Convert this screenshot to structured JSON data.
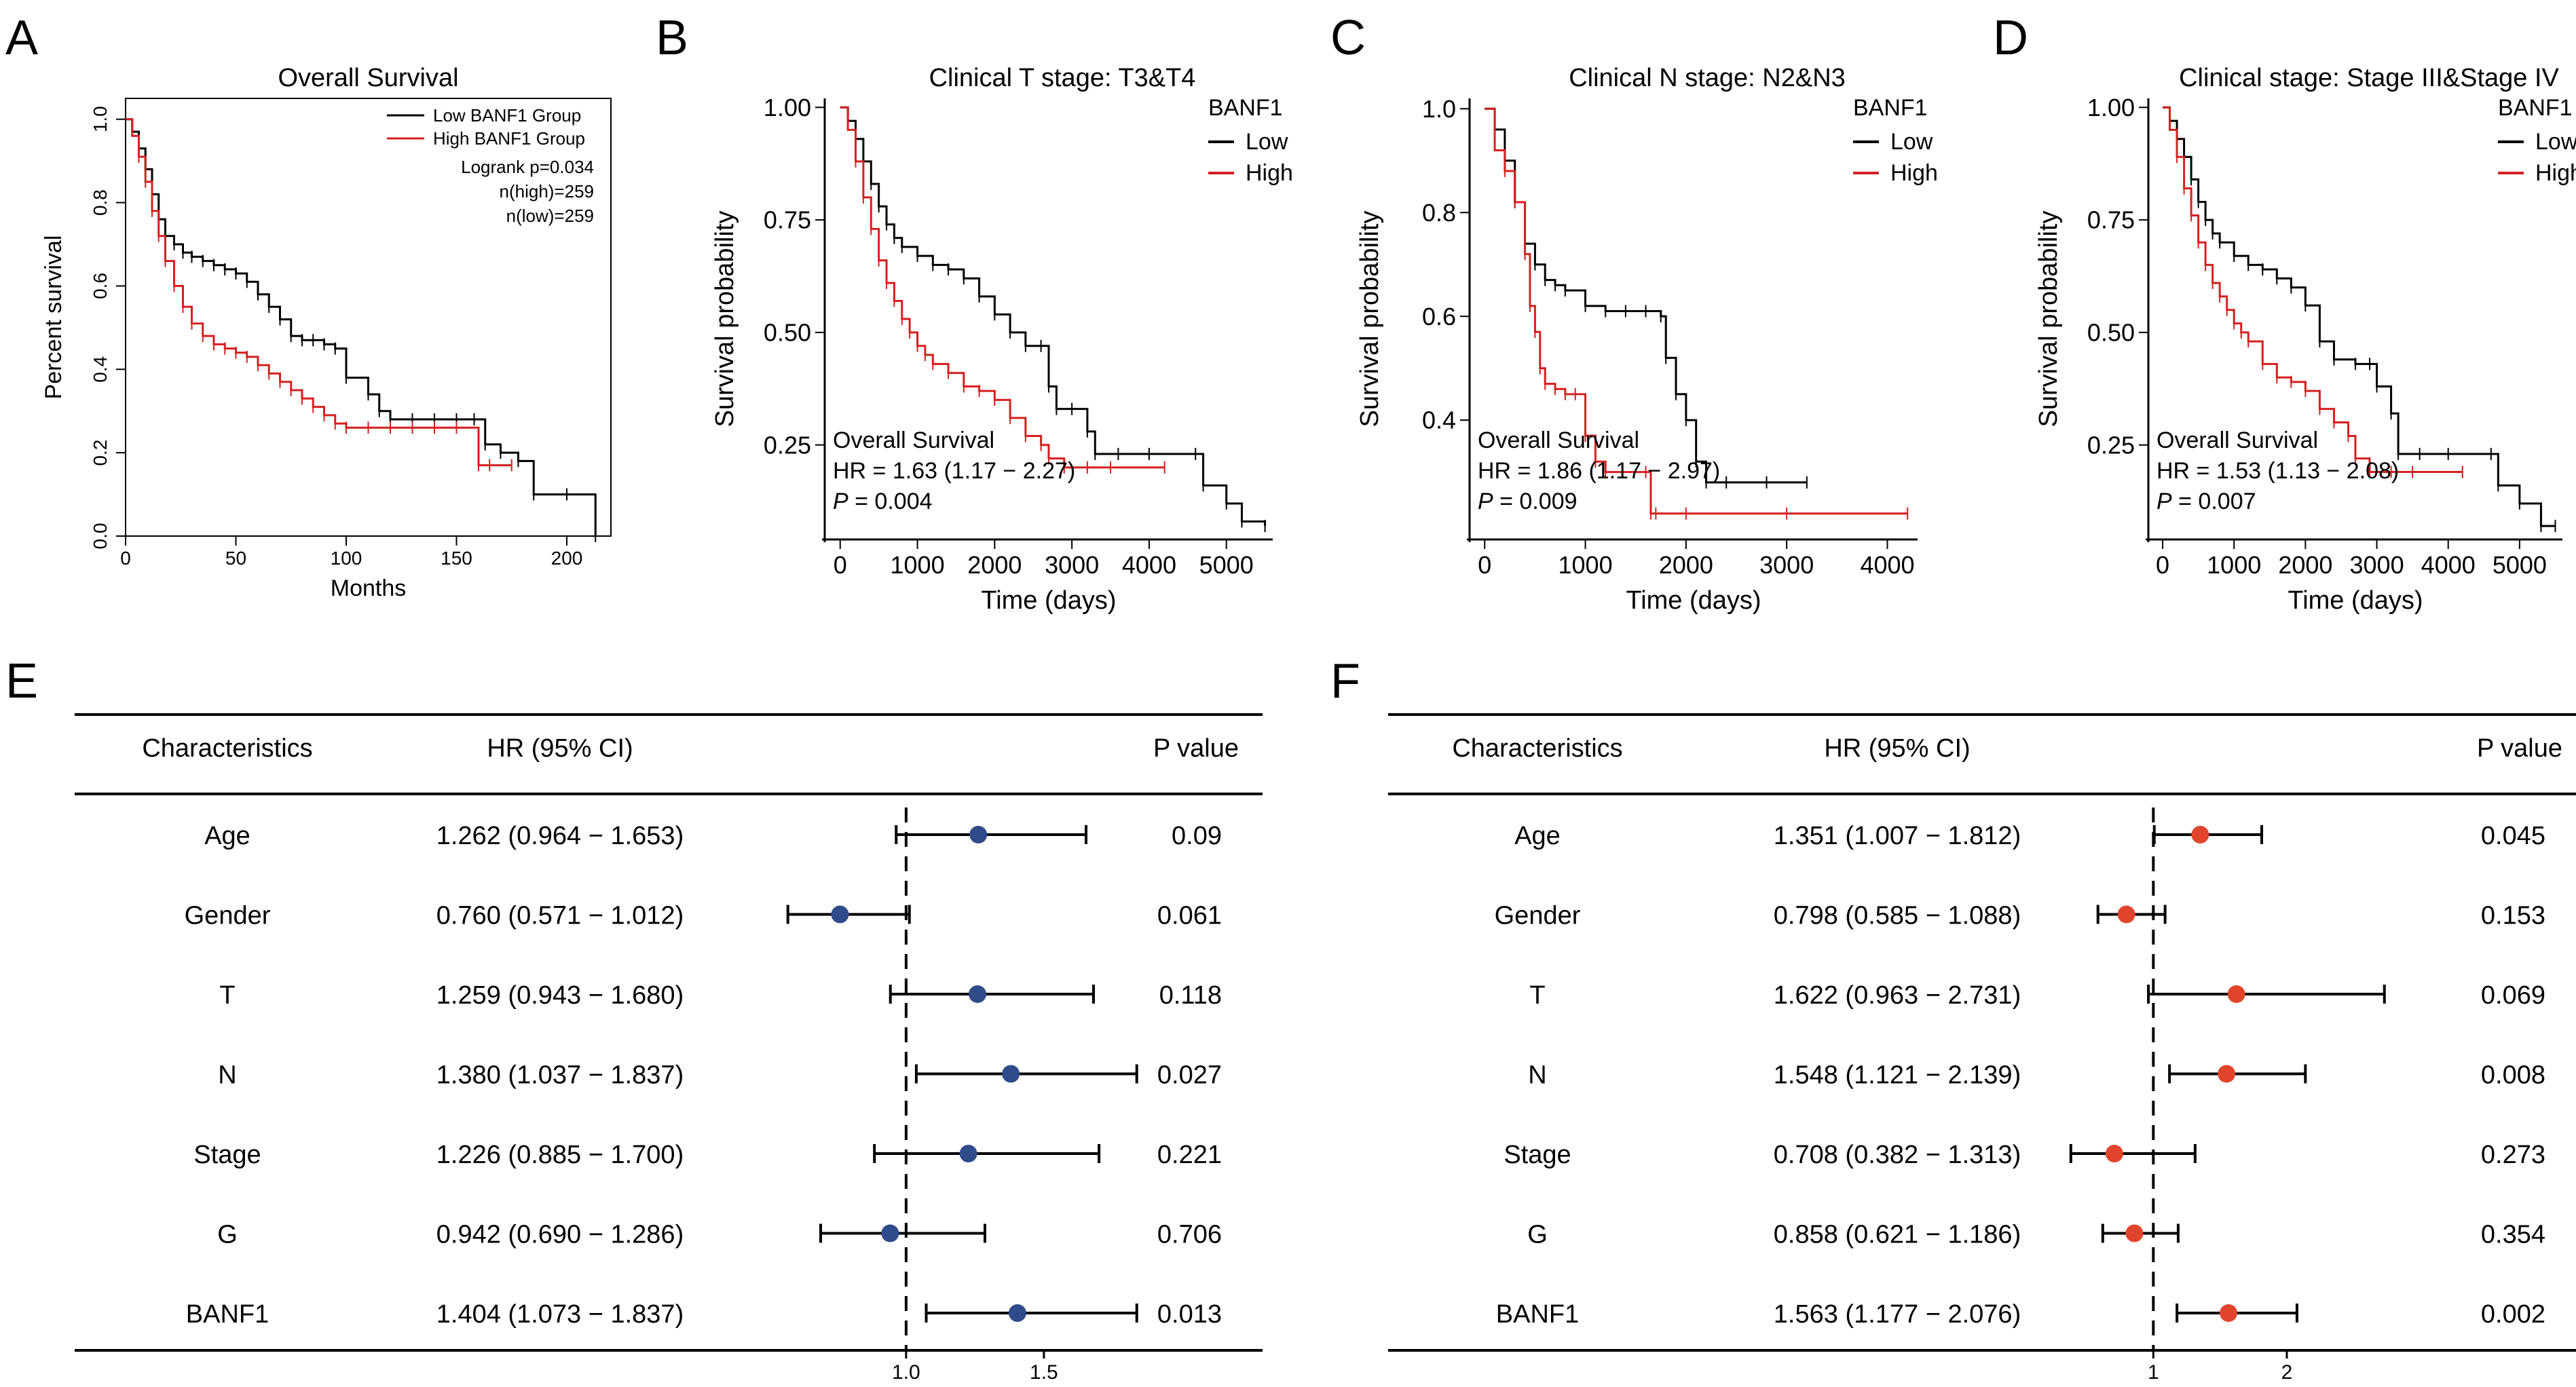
{
  "panel_letters": [
    "A",
    "B",
    "C",
    "D",
    "E",
    "F"
  ],
  "colors": {
    "low": "#000000",
    "high": "#d42020",
    "forest_e": "#2f4b8a",
    "forest_f": "#e0452c"
  },
  "chart_data": [
    {
      "id": "A",
      "type": "line",
      "title": "Overall Survival",
      "xlabel": "Months",
      "ylabel": "Percent survival",
      "xlim": [
        0,
        220
      ],
      "ylim": [
        0,
        1.05
      ],
      "xticks": [
        "0",
        "50",
        "100",
        "150",
        "200"
      ],
      "yticks": [
        "0.0",
        "0.2",
        "0.4",
        "0.6",
        "0.8",
        "1.0"
      ],
      "legend": [
        "Low BANF1 Group",
        "High BANF1 Group"
      ],
      "annotations": [
        "Logrank p=0.034",
        "n(high)=259",
        "n(low)=259"
      ],
      "series": [
        {
          "name": "Low BANF1 Group",
          "x": [
            0,
            3,
            6,
            9,
            12,
            15,
            18,
            22,
            26,
            30,
            35,
            40,
            45,
            50,
            55,
            60,
            65,
            70,
            75,
            80,
            85,
            90,
            95,
            100,
            110,
            115,
            120,
            130,
            140,
            150,
            158,
            163,
            170,
            178,
            185,
            200,
            213
          ],
          "y": [
            1.0,
            0.97,
            0.93,
            0.88,
            0.82,
            0.76,
            0.72,
            0.7,
            0.68,
            0.67,
            0.66,
            0.65,
            0.64,
            0.63,
            0.61,
            0.58,
            0.55,
            0.52,
            0.48,
            0.47,
            0.47,
            0.46,
            0.45,
            0.38,
            0.34,
            0.3,
            0.28,
            0.28,
            0.28,
            0.28,
            0.28,
            0.22,
            0.2,
            0.18,
            0.1,
            0.1,
            0.0
          ]
        },
        {
          "name": "High BANF1 Group",
          "x": [
            0,
            3,
            6,
            9,
            12,
            15,
            18,
            22,
            26,
            30,
            35,
            40,
            45,
            50,
            55,
            60,
            65,
            70,
            75,
            80,
            85,
            90,
            95,
            100,
            110,
            120,
            130,
            140,
            150,
            160,
            165,
            175
          ],
          "y": [
            1.0,
            0.96,
            0.91,
            0.85,
            0.78,
            0.72,
            0.66,
            0.6,
            0.55,
            0.51,
            0.48,
            0.46,
            0.45,
            0.44,
            0.43,
            0.41,
            0.39,
            0.37,
            0.35,
            0.33,
            0.31,
            0.29,
            0.27,
            0.26,
            0.26,
            0.26,
            0.26,
            0.26,
            0.26,
            0.17,
            0.17,
            0.17
          ]
        }
      ]
    },
    {
      "id": "B",
      "type": "line",
      "title": "Clinical T stage: T3&T4",
      "xlabel": "Time (days)",
      "ylabel": "Survival probability",
      "xlim": [
        -200,
        5600
      ],
      "ylim": [
        0.04,
        1.02
      ],
      "xticks": [
        "0",
        "1000",
        "2000",
        "3000",
        "4000",
        "5000"
      ],
      "yticks": [
        "0.25",
        "0.50",
        "0.75",
        "1.00"
      ],
      "legend_title": "BANF1",
      "legend": [
        "Low",
        "High"
      ],
      "annotations": [
        "Overall Survival",
        "HR = 1.63 (1.17 − 2.27)",
        "P",
        " = 0.004"
      ],
      "series": [
        {
          "name": "Low",
          "x": [
            0,
            100,
            200,
            300,
            400,
            500,
            600,
            700,
            800,
            1000,
            1200,
            1400,
            1600,
            1800,
            2000,
            2200,
            2400,
            2600,
            2700,
            2800,
            3000,
            3200,
            3300,
            3600,
            4000,
            4600,
            4700,
            5000,
            5200,
            5500
          ],
          "y": [
            1.0,
            0.97,
            0.93,
            0.88,
            0.83,
            0.78,
            0.74,
            0.71,
            0.69,
            0.67,
            0.65,
            0.64,
            0.62,
            0.58,
            0.54,
            0.5,
            0.47,
            0.47,
            0.38,
            0.33,
            0.33,
            0.28,
            0.23,
            0.23,
            0.23,
            0.23,
            0.16,
            0.12,
            0.08,
            0.07
          ]
        },
        {
          "name": "High",
          "x": [
            0,
            100,
            200,
            300,
            400,
            500,
            600,
            700,
            800,
            900,
            1000,
            1100,
            1200,
            1400,
            1600,
            1800,
            2000,
            2200,
            2400,
            2600,
            2700,
            2900,
            3200,
            3500,
            4200
          ],
          "y": [
            1.0,
            0.95,
            0.88,
            0.8,
            0.73,
            0.66,
            0.61,
            0.57,
            0.53,
            0.5,
            0.47,
            0.45,
            0.43,
            0.41,
            0.38,
            0.37,
            0.35,
            0.31,
            0.27,
            0.25,
            0.22,
            0.2,
            0.2,
            0.2,
            0.2
          ]
        }
      ]
    },
    {
      "id": "C",
      "type": "line",
      "title": "Clinical N stage: N2&N3",
      "xlabel": "Time (days)",
      "ylabel": "Survival probability",
      "xlim": [
        -150,
        4300
      ],
      "ylim": [
        0.17,
        1.02
      ],
      "xticks": [
        "0",
        "1000",
        "2000",
        "3000",
        "4000"
      ],
      "yticks": [
        "0.4",
        "0.6",
        "0.8",
        "1.0"
      ],
      "legend_title": "BANF1",
      "legend": [
        "Low",
        "High"
      ],
      "annotations": [
        "Overall Survival",
        "HR = 1.86 (1.17 − 2.97)",
        "P",
        " = 0.009"
      ],
      "series": [
        {
          "name": "Low",
          "x": [
            0,
            100,
            200,
            300,
            400,
            500,
            600,
            700,
            800,
            1000,
            1200,
            1400,
            1600,
            1750,
            1800,
            1900,
            2000,
            2100,
            2200,
            2400,
            2800,
            3200
          ],
          "y": [
            1.0,
            0.96,
            0.9,
            0.82,
            0.74,
            0.7,
            0.67,
            0.66,
            0.65,
            0.62,
            0.61,
            0.61,
            0.61,
            0.6,
            0.52,
            0.45,
            0.4,
            0.32,
            0.28,
            0.28,
            0.28,
            0.28
          ]
        },
        {
          "name": "High",
          "x": [
            0,
            100,
            200,
            300,
            400,
            450,
            500,
            550,
            600,
            700,
            800,
            900,
            1000,
            1100,
            1200,
            1600,
            1650,
            1700,
            2000,
            3000,
            4200
          ],
          "y": [
            1.0,
            0.92,
            0.88,
            0.82,
            0.72,
            0.62,
            0.57,
            0.5,
            0.47,
            0.46,
            0.45,
            0.45,
            0.37,
            0.32,
            0.3,
            0.3,
            0.22,
            0.22,
            0.22,
            0.22,
            0.22
          ]
        }
      ]
    },
    {
      "id": "D",
      "type": "line",
      "title": "Clinical stage: Stage III&Stage IV",
      "xlabel": "Time (days)",
      "ylabel": "Survival probability",
      "xlim": [
        -200,
        5600
      ],
      "ylim": [
        0.04,
        1.02
      ],
      "xticks": [
        "0",
        "1000",
        "2000",
        "3000",
        "4000",
        "5000"
      ],
      "yticks": [
        "0.25",
        "0.50",
        "0.75",
        "1.00"
      ],
      "legend_title": "BANF1",
      "legend": [
        "Low",
        "High"
      ],
      "annotations": [
        "Overall Survival",
        "HR = 1.53 (1.13 − 2.08)",
        "P",
        " = 0.007"
      ],
      "series": [
        {
          "name": "Low",
          "x": [
            0,
            100,
            200,
            300,
            400,
            500,
            600,
            700,
            800,
            1000,
            1200,
            1400,
            1600,
            1800,
            2000,
            2200,
            2400,
            2700,
            2900,
            3000,
            3200,
            3300,
            3600,
            4000,
            4600,
            4700,
            5000,
            5300,
            5500
          ],
          "y": [
            1.0,
            0.97,
            0.93,
            0.89,
            0.84,
            0.79,
            0.75,
            0.72,
            0.7,
            0.67,
            0.65,
            0.64,
            0.62,
            0.6,
            0.56,
            0.48,
            0.44,
            0.43,
            0.43,
            0.38,
            0.32,
            0.23,
            0.23,
            0.23,
            0.23,
            0.16,
            0.12,
            0.07,
            0.07
          ]
        },
        {
          "name": "High",
          "x": [
            0,
            100,
            200,
            300,
            400,
            500,
            600,
            700,
            800,
            900,
            1000,
            1100,
            1200,
            1400,
            1600,
            1800,
            2000,
            2200,
            2400,
            2600,
            2700,
            2900,
            3200,
            3500,
            4200
          ],
          "y": [
            1.0,
            0.95,
            0.89,
            0.82,
            0.76,
            0.7,
            0.65,
            0.61,
            0.58,
            0.55,
            0.52,
            0.5,
            0.48,
            0.43,
            0.4,
            0.39,
            0.37,
            0.33,
            0.3,
            0.27,
            0.22,
            0.19,
            0.19,
            0.19,
            0.19
          ]
        }
      ]
    },
    {
      "id": "E",
      "type": "forest",
      "headers": [
        "Characteristics",
        "HR (95% CI)",
        "P value"
      ],
      "xlim": [
        0.52,
        1.85
      ],
      "ref": 1.0,
      "xticks": [
        {
          "v": 1.0,
          "label": "1.0"
        },
        {
          "v": 1.5,
          "label": "1.5"
        }
      ],
      "rows": [
        {
          "label": "Age",
          "ci": "1.262 (0.964 − 1.653)",
          "hr": 1.262,
          "low": 0.964,
          "high": 1.653,
          "p": "0.09"
        },
        {
          "label": "Gender",
          "ci": "0.760 (0.571 − 1.012)",
          "hr": 0.76,
          "low": 0.571,
          "high": 1.012,
          "p": "0.061"
        },
        {
          "label": "T",
          "ci": "1.259 (0.943 − 1.680)",
          "hr": 1.259,
          "low": 0.943,
          "high": 1.68,
          "p": "0.118"
        },
        {
          "label": "N",
          "ci": "1.380 (1.037 − 1.837)",
          "hr": 1.38,
          "low": 1.037,
          "high": 1.837,
          "p": "0.027"
        },
        {
          "label": "Stage",
          "ci": "1.226 (0.885 − 1.700)",
          "hr": 1.226,
          "low": 0.885,
          "high": 1.7,
          "p": "0.221"
        },
        {
          "label": "G",
          "ci": "0.942 (0.690 − 1.286)",
          "hr": 0.942,
          "low": 0.69,
          "high": 1.286,
          "p": "0.706"
        },
        {
          "label": "BANF1",
          "ci": "1.404 (1.073 − 1.837)",
          "hr": 1.404,
          "low": 1.073,
          "high": 1.837,
          "p": "0.013"
        }
      ]
    },
    {
      "id": "F",
      "type": "forest",
      "headers": [
        "Characteristics",
        "HR (95% CI)",
        "P value"
      ],
      "xlim": [
        0.2,
        3.2
      ],
      "ref": 1.0,
      "xticks": [
        {
          "v": 1,
          "label": "1"
        },
        {
          "v": 2,
          "label": "2"
        }
      ],
      "rows": [
        {
          "label": "Age",
          "ci": "1.351 (1.007 − 1.812)",
          "hr": 1.351,
          "low": 1.007,
          "high": 1.812,
          "p": "0.045"
        },
        {
          "label": "Gender",
          "ci": "0.798 (0.585 − 1.088)",
          "hr": 0.798,
          "low": 0.585,
          "high": 1.088,
          "p": "0.153"
        },
        {
          "label": "T",
          "ci": "1.622 (0.963 − 2.731)",
          "hr": 1.622,
          "low": 0.963,
          "high": 2.731,
          "p": "0.069"
        },
        {
          "label": "N",
          "ci": "1.548 (1.121 − 2.139)",
          "hr": 1.548,
          "low": 1.121,
          "high": 2.139,
          "p": "0.008"
        },
        {
          "label": "Stage",
          "ci": "0.708 (0.382 − 1.313)",
          "hr": 0.708,
          "low": 0.382,
          "high": 1.313,
          "p": "0.273"
        },
        {
          "label": "G",
          "ci": "0.858 (0.621 − 1.186)",
          "hr": 0.858,
          "low": 0.621,
          "high": 1.186,
          "p": "0.354"
        },
        {
          "label": "BANF1",
          "ci": "1.563 (1.177 − 2.076)",
          "hr": 1.563,
          "low": 1.177,
          "high": 2.076,
          "p": "0.002"
        }
      ]
    }
  ]
}
